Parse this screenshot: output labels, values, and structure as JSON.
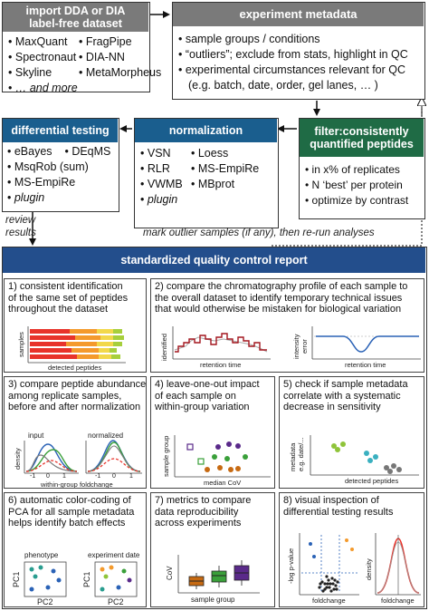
{
  "import": {
    "title_line1": "import DDA or DIA",
    "title_line2": "label-free dataset",
    "items": [
      "MaxQuant",
      "FragPipe",
      "Spectronaut",
      "DIA-NN",
      "Skyline",
      "MetaMorpheus",
      "… and more"
    ]
  },
  "metadata": {
    "title": "experiment metadata",
    "items": [
      "sample groups / conditions",
      "“outliers”; exclude from stats, highlight in QC",
      "experimental circumstances relevant for QC",
      "(e.g. batch, date, order, gel lanes, … )"
    ]
  },
  "differential": {
    "title": "differential testing",
    "items": [
      "eBayes",
      "DEqMS",
      "MsqRob",
      "(sum)",
      "MS-EmpiRe",
      "plugin"
    ]
  },
  "normalization": {
    "title": "normalization",
    "items": [
      "VSN",
      "Loess",
      "RLR",
      "MS-EmpiRe",
      "VWMB",
      "MBprot",
      "plugin"
    ]
  },
  "filter": {
    "title_line1": "filter:consistently",
    "title_line2": "quantified peptides",
    "items": [
      "in x% of replicates",
      "N ‘best’ per protein",
      "optimize by contrast"
    ]
  },
  "notes": {
    "review_line1": "review",
    "review_line2": "results",
    "outlier": "mark outlier samples (if any), then re-run analyses"
  },
  "report": {
    "title": "standardized quality control report",
    "panels": [
      {
        "text": [
          "1) consistent identification",
          "of the same set of peptides",
          "throughout the dataset"
        ]
      },
      {
        "text": [
          "2) compare the chromatography profile of each sample to",
          "the overall dataset to identify temporary technical issues",
          "that would otherwise be mistaken for biological variation"
        ]
      },
      {
        "text": [
          "3) compare peptide abundances",
          "among replicate samples,",
          "before and after normalization"
        ]
      },
      {
        "text": [
          "4) leave-one-out impact",
          "of each sample on",
          "within-group variation"
        ]
      },
      {
        "text": [
          "5) check if sample metadata",
          "correlate with a systematic",
          "decrease in sensitivity"
        ]
      },
      {
        "text": [
          "6) automatic color-coding of",
          "PCA for all sample metadata",
          "helps identify batch effects"
        ]
      },
      {
        "text": [
          "7) metrics to compare",
          "data reproducibility",
          "across experiments"
        ]
      },
      {
        "text": [
          "8) visual inspection of",
          "differential testing results"
        ]
      }
    ],
    "labels": {
      "p1_y": "samples",
      "p1_x": "detected peptides",
      "p2a_y": "identified",
      "p2a_x": "retention time",
      "p2b_y1": "intensity",
      "p2b_y2": "error",
      "p2b_x": "retention time",
      "p3_y": "density",
      "p3_x": "within-group foldchange",
      "p3_input": "input",
      "p3_norm": "normalized",
      "p3_ticks": [
        "-1",
        "0",
        "1",
        "-1",
        "0",
        "1"
      ],
      "p4_y": "sample group",
      "p4_x": "median CoV",
      "p5_y1": "metadata",
      "p5_y2": "e.g. date/...",
      "p5_x": "detected peptides",
      "p6_a": "phenotype",
      "p6_b": "experiment date",
      "p6_y": "PC1",
      "p6_x": "PC2",
      "p7_y": "CoV",
      "p7_x": "sample group",
      "p8a_y": "-log p-value",
      "p8a_x": "foldchange",
      "p8b_y": "density",
      "p8b_x": "foldchange"
    }
  },
  "colors": {
    "gray_header": "#7a7a7a",
    "blue_header": "#1a5e8e",
    "green_header": "#1f6b45",
    "navy_header": "#234e8c",
    "bar_red": "#e8332b",
    "bar_orange": "#f49a2c",
    "bar_yellow": "#f2d84a",
    "bar_lime": "#a6cf3c",
    "profile_red": "#a3161e",
    "curve_blue": "#2a62b6",
    "curve_green": "#3aa03a"
  }
}
